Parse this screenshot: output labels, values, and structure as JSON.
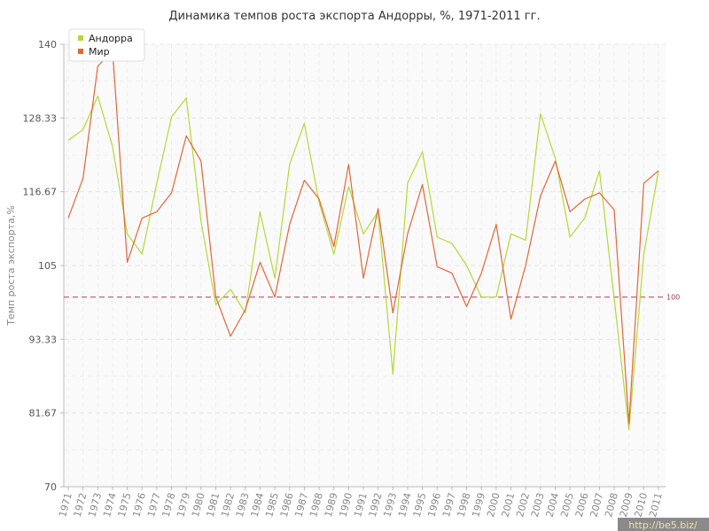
{
  "chart_data": {
    "type": "line",
    "title": "Динамика темпов роста экспорта Андорры, %, 1971-2011 гг.",
    "ylabel": "Темп роста экспорта,%",
    "xlabel": "",
    "ylim": [
      70,
      140
    ],
    "yticks": [
      "70",
      "81.67",
      "93.33",
      "105",
      "116.67",
      "128.33",
      "140"
    ],
    "grid": true,
    "legend_position": "top-left",
    "reference_line": {
      "value": 100,
      "label": "100",
      "color": "#a04060"
    },
    "categories": [
      "1971",
      "1972",
      "1973",
      "1974",
      "1975",
      "1976",
      "1977",
      "1978",
      "1979",
      "1980",
      "1981",
      "1982",
      "1983",
      "1984",
      "1985",
      "1986",
      "1987",
      "1988",
      "1989",
      "1990",
      "1991",
      "1992",
      "1993",
      "1994",
      "1995",
      "1996",
      "1997",
      "1998",
      "1999",
      "2000",
      "2001",
      "2002",
      "2003",
      "2004",
      "2005",
      "2006",
      "2007",
      "2008",
      "2009",
      "2010",
      "2011"
    ],
    "series": [
      {
        "name": "Андорра",
        "color": "#b5d936",
        "values": [
          124.8,
          126.5,
          131.8,
          123.8,
          110.0,
          106.8,
          118.0,
          128.5,
          131.5,
          112.0,
          98.8,
          101.2,
          97.5,
          113.5,
          103.0,
          121.0,
          127.5,
          115.0,
          106.8,
          117.5,
          110.0,
          113.5,
          87.8,
          118.0,
          123.0,
          109.5,
          108.5,
          105.0,
          100.0,
          100.0,
          110.0,
          109.0,
          129.0,
          122.0,
          109.5,
          112.5,
          120.0,
          99.8,
          79.0,
          106.8,
          120.0
        ]
      },
      {
        "name": "Мир",
        "color": "#e0673a",
        "values": [
          112.5,
          118.8,
          136.5,
          139.0,
          105.5,
          112.5,
          113.5,
          116.5,
          125.5,
          121.5,
          100.0,
          93.8,
          98.0,
          105.5,
          100.0,
          111.5,
          118.5,
          115.5,
          108.0,
          121.0,
          103.0,
          114.0,
          97.5,
          110.0,
          117.8,
          104.8,
          103.8,
          98.5,
          103.8,
          111.5,
          96.5,
          105.0,
          116.0,
          121.5,
          113.5,
          115.5,
          116.5,
          113.8,
          80.0,
          118.0,
          120.0
        ]
      }
    ]
  },
  "watermark": "http://be5.biz/"
}
